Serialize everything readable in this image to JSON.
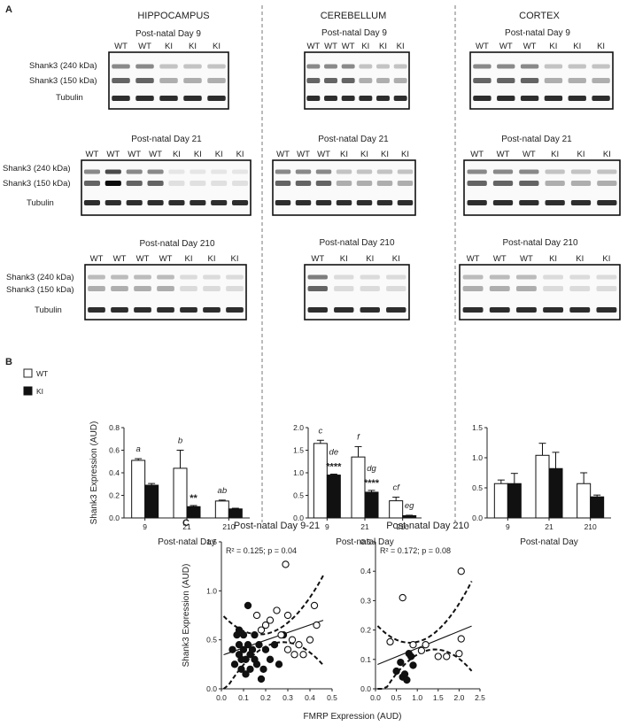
{
  "panel_labels": {
    "a": "A",
    "b": "B",
    "c": "C"
  },
  "regions": [
    "HIPPOCAMPUS",
    "CEREBELLUM",
    "CORTEX"
  ],
  "blots": {
    "label_shank_240": "Shank3 (240 kDa)",
    "label_shank_150": "Shank3 (150 kDa)",
    "label_tubulin": "Tubulin",
    "rows": [
      {
        "day_label": "Post-natal Day 9",
        "lanes": [
          [
            "WT",
            "WT",
            "KI",
            "KI",
            "KI"
          ],
          [
            "WT",
            "WT",
            "WT",
            "KI",
            "KI",
            "KI"
          ],
          [
            "WT",
            "WT",
            "WT",
            "KI",
            "KI",
            "KI"
          ]
        ]
      },
      {
        "day_label": "Post-natal Day 21",
        "lanes": [
          [
            "WT",
            "WT",
            "WT",
            "WT",
            "KI",
            "KI",
            "KI",
            "KI"
          ],
          [
            "WT",
            "WT",
            "WT",
            "KI",
            "KI",
            "KI",
            "KI"
          ],
          [
            "WT",
            "WT",
            "WT",
            "KI",
            "KI",
            "KI"
          ]
        ]
      },
      {
        "day_label": "Post-natal Day 210",
        "lanes": [
          [
            "WT",
            "WT",
            "WT",
            "WT",
            "KI",
            "KI",
            "KI"
          ],
          [
            "WT",
            "KI",
            "KI",
            "KI"
          ],
          [
            "WT",
            "WT",
            "WT",
            "KI",
            "KI",
            "KI"
          ]
        ]
      }
    ]
  },
  "legend": {
    "wt": "WT",
    "ki": "KI"
  },
  "colors": {
    "wt_fill": "#ffffff",
    "ki_fill": "#111111",
    "axis": "#222222",
    "divider": "#777777"
  },
  "chart_data": [
    {
      "type": "bar",
      "panel": "B",
      "region": "HIPPOCAMPUS",
      "categories": [
        "9",
        "21",
        "210"
      ],
      "series": [
        {
          "name": "WT",
          "values": [
            0.51,
            0.44,
            0.15
          ],
          "errors": [
            0.015,
            0.16,
            0.008
          ]
        },
        {
          "name": "KI",
          "values": [
            0.29,
            0.1,
            0.08
          ],
          "errors": [
            0.015,
            0.01,
            0.006
          ]
        }
      ],
      "xlabel": "Post-natal Day",
      "ylabel": "Shank3 Expression (AUD)",
      "ylim": [
        0,
        0.8
      ],
      "yticks": [
        "0.0",
        "0.2",
        "0.4",
        "0.6",
        "0.8"
      ],
      "annotations": [
        {
          "category": "9",
          "series": "WT",
          "text": "a",
          "kind": "letter"
        },
        {
          "category": "21",
          "series": "WT",
          "text": "b",
          "kind": "letter"
        },
        {
          "category": "21",
          "series": "KI",
          "text": "**",
          "kind": "stars"
        },
        {
          "category": "210",
          "series": "WT",
          "text": "ab",
          "kind": "letter"
        }
      ]
    },
    {
      "type": "bar",
      "panel": "B",
      "region": "CEREBELLUM",
      "categories": [
        "9",
        "21",
        "210"
      ],
      "series": [
        {
          "name": "WT",
          "values": [
            1.65,
            1.35,
            0.38
          ],
          "errors": [
            0.07,
            0.23,
            0.08
          ]
        },
        {
          "name": "KI",
          "values": [
            0.95,
            0.57,
            0.05
          ],
          "errors": [
            0.02,
            0.04,
            0.01
          ]
        }
      ],
      "xlabel": "Post-natal Day",
      "ylabel": "",
      "ylim": [
        0,
        2.0
      ],
      "yticks": [
        "0.0",
        "0.5",
        "1.0",
        "1.5",
        "2.0"
      ],
      "annotations": [
        {
          "category": "9",
          "series": "WT",
          "text": "c",
          "kind": "letter"
        },
        {
          "category": "9",
          "series": "KI",
          "text": "de",
          "kind": "letter"
        },
        {
          "category": "9",
          "series": "KI",
          "text": "****",
          "kind": "stars"
        },
        {
          "category": "21",
          "series": "WT",
          "text": "f",
          "kind": "letter"
        },
        {
          "category": "21",
          "series": "KI",
          "text": "dg",
          "kind": "letter"
        },
        {
          "category": "21",
          "series": "KI",
          "text": "****",
          "kind": "stars"
        },
        {
          "category": "210",
          "series": "WT",
          "text": "cf",
          "kind": "letter"
        },
        {
          "category": "210",
          "series": "KI",
          "text": "eg",
          "kind": "letter"
        }
      ]
    },
    {
      "type": "bar",
      "panel": "B",
      "region": "CORTEX",
      "categories": [
        "9",
        "21",
        "210"
      ],
      "series": [
        {
          "name": "WT",
          "values": [
            0.57,
            1.04,
            0.57
          ],
          "errors": [
            0.06,
            0.2,
            0.18
          ]
        },
        {
          "name": "KI",
          "values": [
            0.57,
            0.82,
            0.35
          ],
          "errors": [
            0.17,
            0.27,
            0.03
          ]
        }
      ],
      "xlabel": "Post-natal Day",
      "ylabel": "",
      "ylim": [
        0,
        1.5
      ],
      "yticks": [
        "0.0",
        "0.5",
        "1.0",
        "1.5"
      ],
      "annotations": []
    },
    {
      "type": "scatter",
      "panel": "C",
      "title": "Post-natal  Day 9-21",
      "stat": "R² = 0.125; p = 0.04",
      "xlabel": "",
      "ylabel": "Shank3 Expression (AUD)",
      "xlim": [
        0,
        0.5
      ],
      "ylim": [
        0,
        1.5
      ],
      "xticks": [
        "0.0",
        "0.1",
        "0.2",
        "0.3",
        "0.4",
        "0.5"
      ],
      "yticks": [
        "0.0",
        "0.5",
        "1.0",
        "1.5"
      ],
      "series": [
        {
          "name": "KI",
          "filled": true,
          "points": [
            [
              0.05,
              0.4
            ],
            [
              0.06,
              0.25
            ],
            [
              0.07,
              0.55
            ],
            [
              0.08,
              0.35
            ],
            [
              0.08,
              0.45
            ],
            [
              0.09,
              0.3
            ],
            [
              0.09,
              0.2
            ],
            [
              0.1,
              0.4
            ],
            [
              0.1,
              0.55
            ],
            [
              0.11,
              0.3
            ],
            [
              0.11,
              0.15
            ],
            [
              0.12,
              0.45
            ],
            [
              0.12,
              0.85
            ],
            [
              0.13,
              0.35
            ],
            [
              0.14,
              0.4
            ],
            [
              0.15,
              0.3
            ],
            [
              0.16,
              0.25
            ],
            [
              0.17,
              0.45
            ],
            [
              0.18,
              0.1
            ],
            [
              0.19,
              0.2
            ],
            [
              0.2,
              0.4
            ],
            [
              0.22,
              0.3
            ],
            [
              0.24,
              0.45
            ],
            [
              0.26,
              0.25
            ],
            [
              0.28,
              0.55
            ],
            [
              0.08,
              0.6
            ],
            [
              0.15,
              0.55
            ],
            [
              0.13,
              0.2
            ]
          ]
        },
        {
          "name": "WT",
          "filled": false,
          "points": [
            [
              0.16,
              0.75
            ],
            [
              0.18,
              0.6
            ],
            [
              0.22,
              0.7
            ],
            [
              0.25,
              0.8
            ],
            [
              0.27,
              0.55
            ],
            [
              0.29,
              1.27
            ],
            [
              0.3,
              0.75
            ],
            [
              0.32,
              0.5
            ],
            [
              0.33,
              0.35
            ],
            [
              0.35,
              0.45
            ],
            [
              0.37,
              0.35
            ],
            [
              0.4,
              0.5
            ],
            [
              0.42,
              0.85
            ],
            [
              0.43,
              0.65
            ],
            [
              0.3,
              0.4
            ],
            [
              0.2,
              0.65
            ]
          ]
        }
      ],
      "fit": {
        "slope": 0.78,
        "intercept": 0.34
      }
    },
    {
      "type": "scatter",
      "panel": "C",
      "title": "Post-natal Day 210",
      "stat": "R² = 0.172; p = 0.08",
      "xlabel": "",
      "ylabel": "",
      "xlim": [
        0,
        2.5
      ],
      "ylim": [
        0,
        0.5
      ],
      "xticks": [
        "0.0",
        "0.5",
        "1.0",
        "1.5",
        "2.0",
        "2.5"
      ],
      "yticks": [
        "0.0",
        "0.1",
        "0.2",
        "0.3",
        "0.4",
        "0.5"
      ],
      "series": [
        {
          "name": "KI",
          "filled": true,
          "points": [
            [
              0.5,
              0.06
            ],
            [
              0.6,
              0.09
            ],
            [
              0.65,
              0.04
            ],
            [
              0.7,
              0.05
            ],
            [
              0.75,
              0.03
            ],
            [
              0.8,
              0.12
            ],
            [
              0.85,
              0.11
            ],
            [
              0.9,
              0.08
            ]
          ]
        },
        {
          "name": "WT",
          "filled": false,
          "points": [
            [
              0.35,
              0.16
            ],
            [
              0.65,
              0.31
            ],
            [
              0.9,
              0.15
            ],
            [
              1.1,
              0.13
            ],
            [
              1.2,
              0.15
            ],
            [
              1.5,
              0.11
            ],
            [
              1.7,
              0.11
            ],
            [
              2.0,
              0.12
            ],
            [
              2.05,
              0.17
            ],
            [
              2.05,
              0.4
            ]
          ]
        }
      ],
      "fit": {
        "slope": 0.058,
        "intercept": 0.08
      }
    }
  ],
  "shared_xlabel": "FMRP Expression (AUD)"
}
